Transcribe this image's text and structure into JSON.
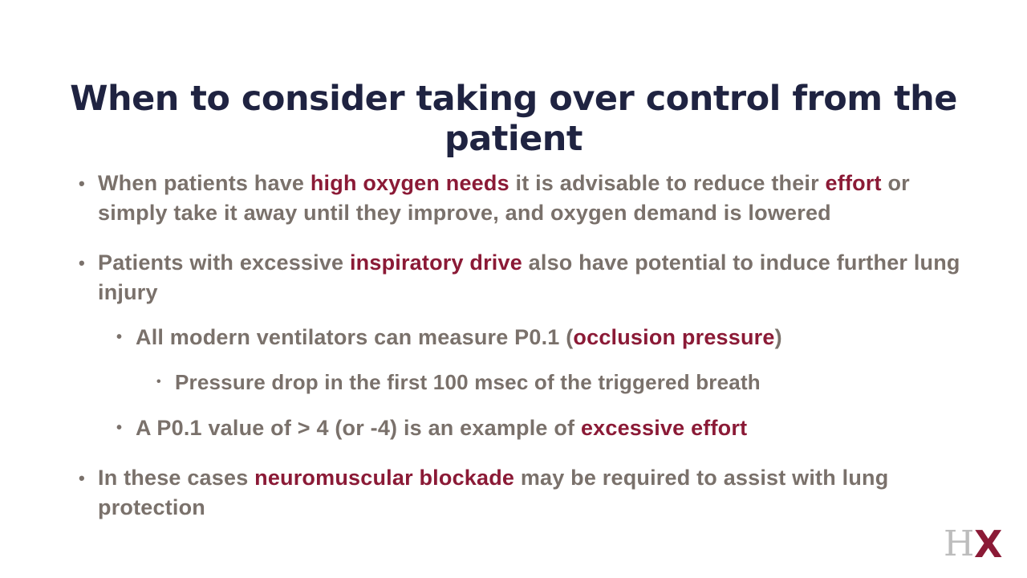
{
  "slide": {
    "title": "When to consider taking over control from the patient",
    "bullets": [
      {
        "parts": [
          "When patients have ",
          "high oxygen needs",
          " it is advisable to reduce their ",
          "effort",
          " or simply take it away until they improve, and oxygen demand is lowered"
        ]
      },
      {
        "parts": [
          "Patients with excessive ",
          "inspiratory drive",
          " also have potential to induce further lung injury"
        ]
      },
      {
        "parts": [
          "All modern ventilators can measure P0.1 (",
          "occlusion pressure",
          ")"
        ]
      },
      {
        "text": "Pressure drop in the first 100 msec of the triggered breath"
      },
      {
        "parts": [
          "A P0.1 value of > 4 (or -4) is an example of ",
          "excessive effort"
        ]
      },
      {
        "parts": [
          "In these cases ",
          "neuromuscular blockade",
          " may be required to assist with lung protection"
        ]
      }
    ]
  },
  "logo": {
    "letters": [
      "H",
      "X"
    ],
    "colors": {
      "h": "#bdbdbd",
      "x": "#8b1a36"
    }
  },
  "colors": {
    "title": "#1f2341",
    "body": "#7a716b",
    "highlight": "#8b1a36"
  }
}
